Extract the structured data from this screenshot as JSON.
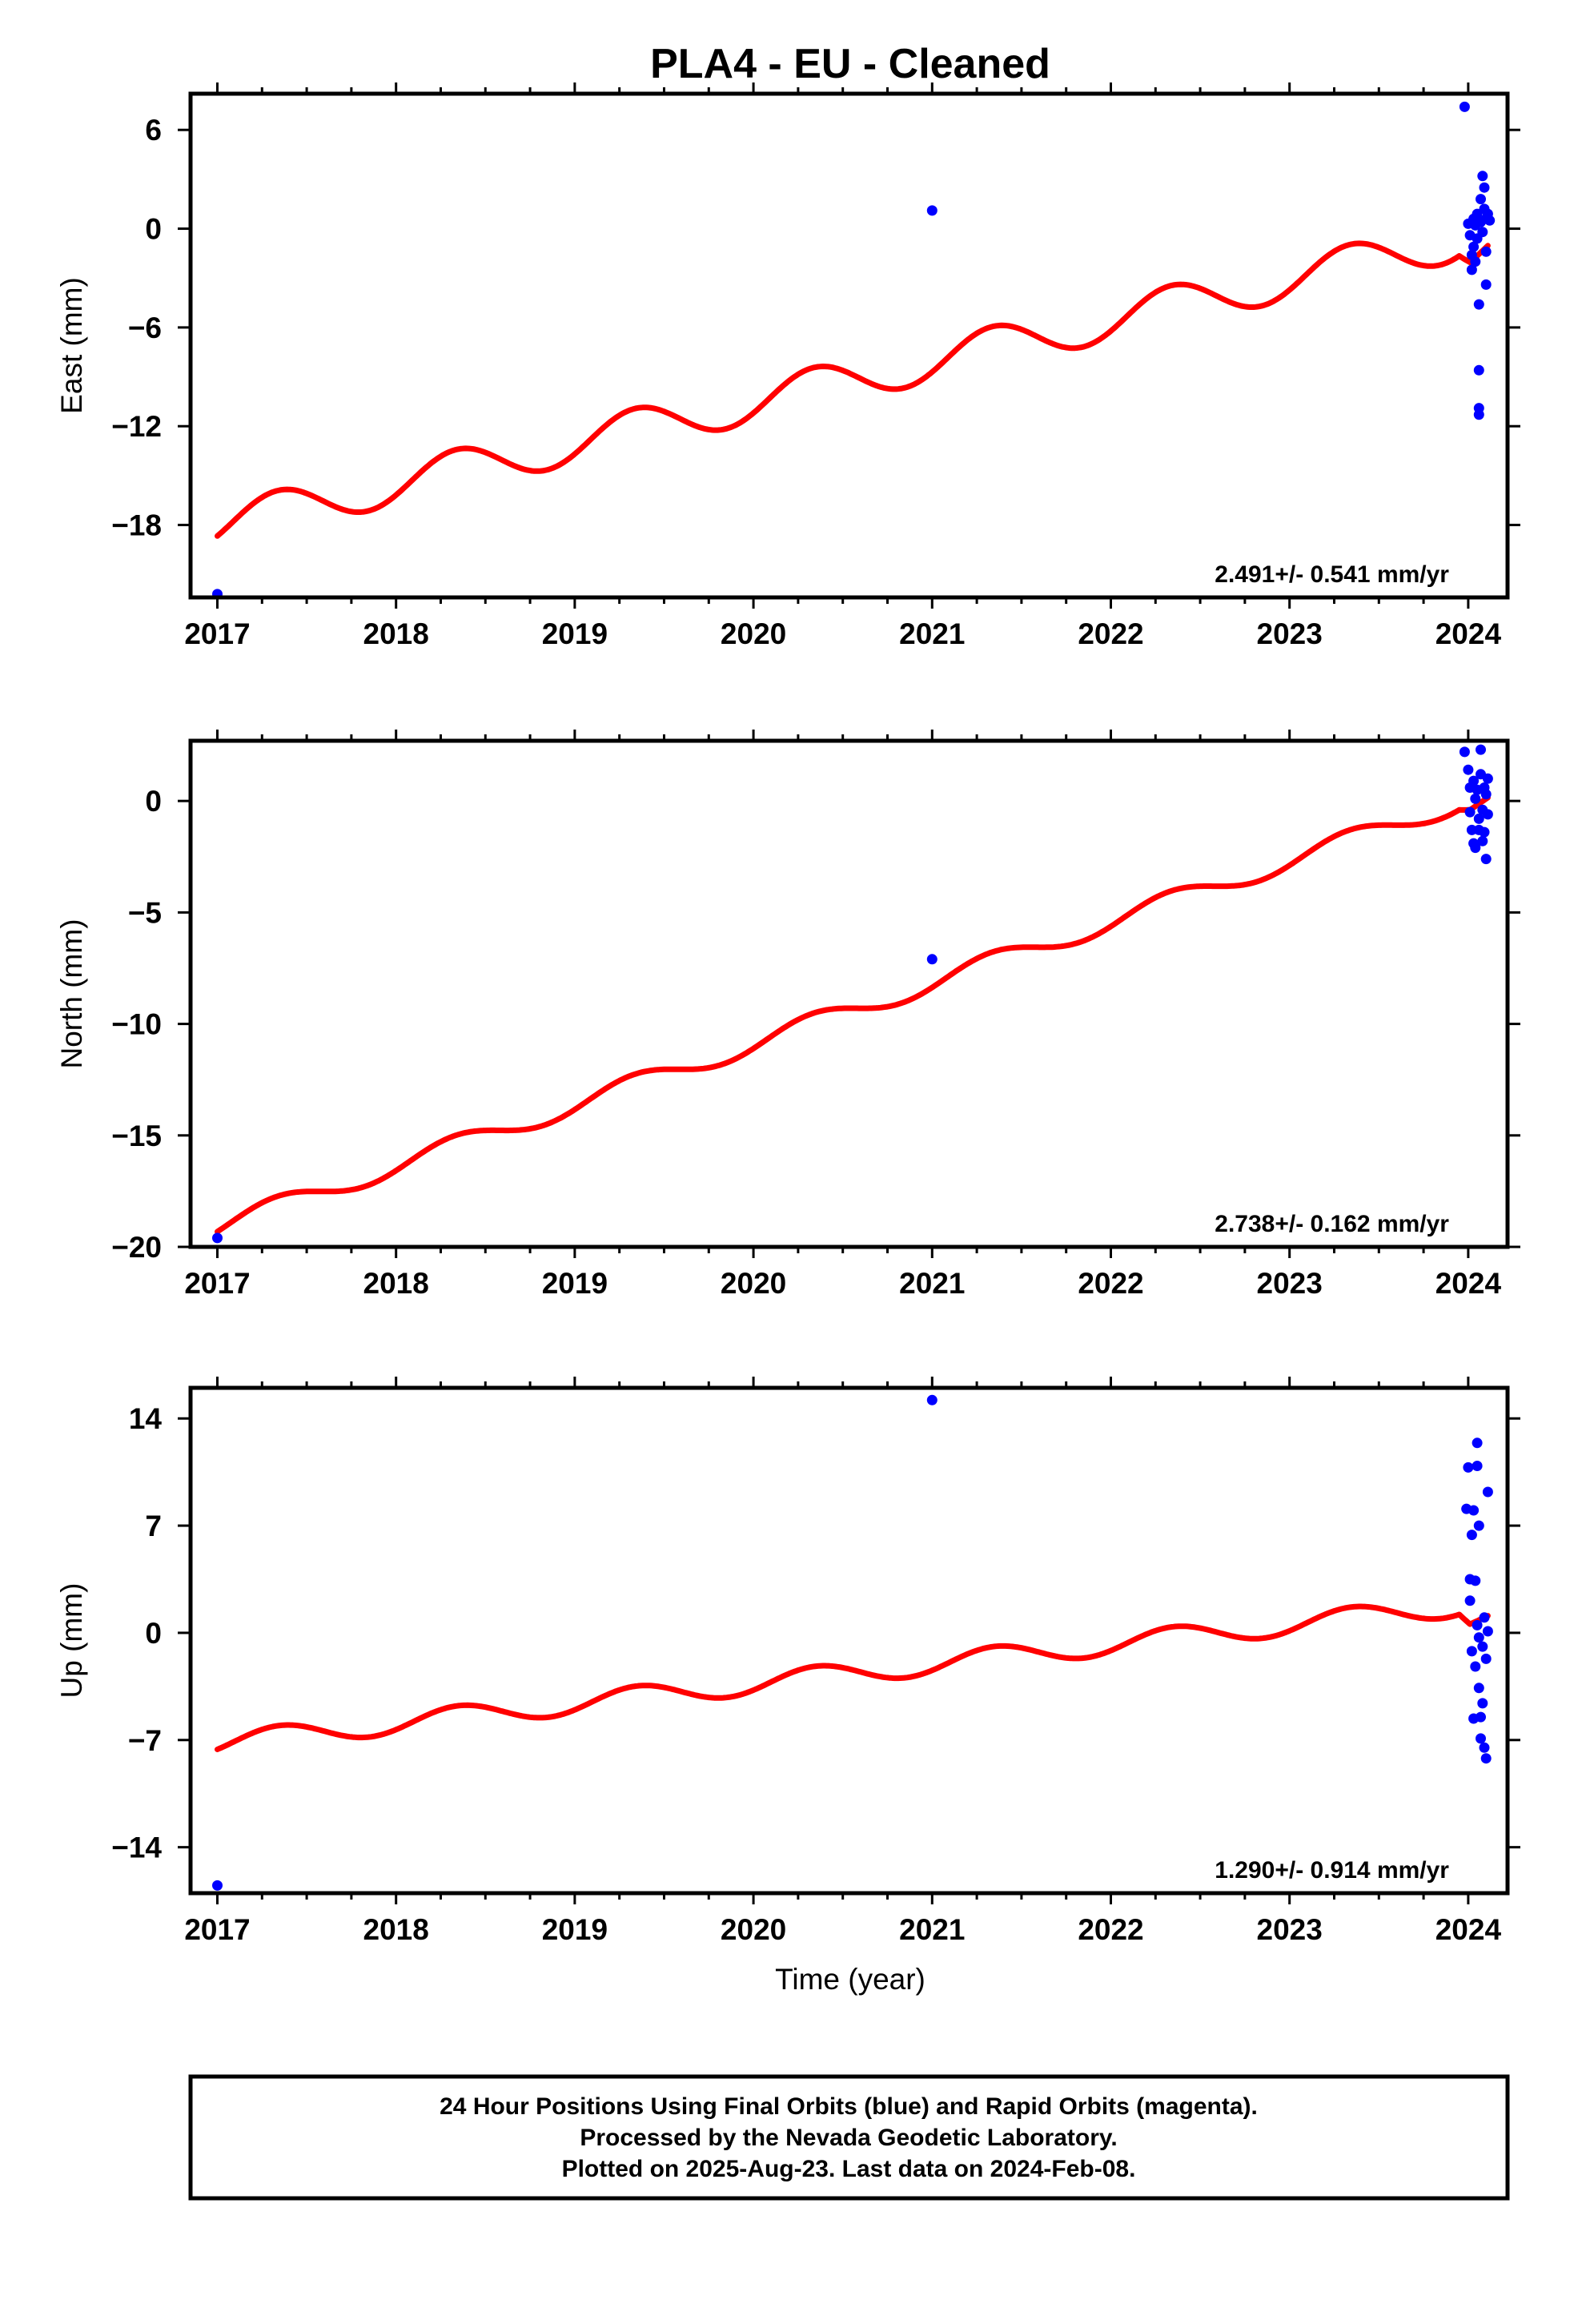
{
  "title": "PLA4  - EU - Cleaned",
  "x_axis_title": "Time (year)",
  "footer": {
    "line1": "24 Hour Positions Using Final Orbits (blue) and Rapid Orbits (magenta).",
    "line2": "Processed by the Nevada Geodetic Laboratory.",
    "line3": "Plotted on 2025-Aug-23. Last data on 2024-Feb-08."
  },
  "colors": {
    "data_points": "#0000ff",
    "model_fit": "#ff0000",
    "frame": "#000000"
  },
  "chart_data": [
    {
      "type": "scatter",
      "component": "East",
      "ylabel": "East (mm)",
      "xlim": [
        2016.85,
        2024.22
      ],
      "ylim": [
        -22.4,
        8.2
      ],
      "x_ticks": [
        2017,
        2018,
        2019,
        2020,
        2021,
        2022,
        2023,
        2024
      ],
      "y_ticks": [
        6,
        0,
        -6,
        -12,
        -18
      ],
      "y_tick_labels": [
        "6",
        "0",
        "−6",
        "−12",
        "−18"
      ],
      "grid": false,
      "rate_label": "2.491+/- 0.541 mm/yr",
      "model": {
        "rate": 2.491,
        "offset_at_2017": -18.0,
        "amplitude": 1.25,
        "phase_year": 0.09,
        "end_step": -0.9,
        "end_step_year": 2023.95
      },
      "points": [
        [
          2017.0,
          -22.2
        ],
        [
          2021.0,
          1.1
        ],
        [
          2023.98,
          7.4
        ],
        [
          2024.0,
          0.3
        ],
        [
          2024.01,
          -0.4
        ],
        [
          2024.02,
          -1.6
        ],
        [
          2024.02,
          -2.5
        ],
        [
          2024.03,
          0.6
        ],
        [
          2024.03,
          -1.1
        ],
        [
          2024.04,
          0.2
        ],
        [
          2024.04,
          -2.0
        ],
        [
          2024.05,
          0.9
        ],
        [
          2024.05,
          -0.6
        ],
        [
          2024.06,
          -4.6
        ],
        [
          2024.06,
          -8.6
        ],
        [
          2024.06,
          -10.9
        ],
        [
          2024.06,
          -11.3
        ],
        [
          2024.07,
          0.4
        ],
        [
          2024.07,
          1.8
        ],
        [
          2024.08,
          3.2
        ],
        [
          2024.08,
          -0.2
        ],
        [
          2024.09,
          2.5
        ],
        [
          2024.09,
          1.2
        ],
        [
          2024.1,
          0.6
        ],
        [
          2024.1,
          -1.4
        ],
        [
          2024.11,
          0.9
        ],
        [
          2024.1,
          -3.4
        ],
        [
          2024.12,
          0.5
        ]
      ]
    },
    {
      "type": "scatter",
      "component": "North",
      "ylabel": "North (mm)",
      "xlim": [
        2016.85,
        2024.22
      ],
      "ylim": [
        -20.0,
        2.7
      ],
      "x_ticks": [
        2017,
        2018,
        2019,
        2020,
        2021,
        2022,
        2023,
        2024
      ],
      "y_ticks": [
        0,
        -5,
        -10,
        -15,
        -20
      ],
      "y_tick_labels": [
        "0",
        "−5",
        "−10",
        "−15",
        "−20"
      ],
      "grid": false,
      "rate_label": "2.738+/- 0.162 mm/yr",
      "model": {
        "rate": 2.738,
        "offset_at_2017": -19.1,
        "amplitude": 0.45,
        "phase_year": 0.08,
        "end_step": -0.3,
        "end_step_year": 2023.95
      },
      "points": [
        [
          2017.0,
          -19.6
        ],
        [
          2021.0,
          -7.1
        ],
        [
          2023.98,
          2.2
        ],
        [
          2024.0,
          1.4
        ],
        [
          2024.01,
          0.6
        ],
        [
          2024.01,
          -0.5
        ],
        [
          2024.02,
          -1.3
        ],
        [
          2024.03,
          0.9
        ],
        [
          2024.03,
          -1.9
        ],
        [
          2024.04,
          0.1
        ],
        [
          2024.04,
          -2.1
        ],
        [
          2024.05,
          0.5
        ],
        [
          2024.06,
          -0.8
        ],
        [
          2024.06,
          -1.3
        ],
        [
          2024.07,
          2.3
        ],
        [
          2024.07,
          1.2
        ],
        [
          2024.08,
          -0.4
        ],
        [
          2024.08,
          -1.8
        ],
        [
          2024.09,
          0.6
        ],
        [
          2024.09,
          -1.4
        ],
        [
          2024.1,
          0.3
        ],
        [
          2024.1,
          -2.6
        ],
        [
          2024.11,
          -0.6
        ],
        [
          2024.11,
          1.0
        ]
      ]
    },
    {
      "type": "scatter",
      "component": "Up",
      "ylabel": "Up (mm)",
      "xlim": [
        2016.85,
        2024.22
      ],
      "ylim": [
        -17.0,
        16.0
      ],
      "x_ticks": [
        2017,
        2018,
        2019,
        2020,
        2021,
        2022,
        2023,
        2024
      ],
      "y_ticks": [
        14,
        7,
        0,
        -7,
        -14
      ],
      "y_tick_labels": [
        "14",
        "7",
        "0",
        "−7",
        "−14"
      ],
      "grid": false,
      "rate_label": "1.290+/- 0.914 mm/yr",
      "model": {
        "rate": 1.29,
        "offset_at_2017": -7.2,
        "amplitude": 0.7,
        "phase_year": 0.1,
        "end_step": -0.9,
        "end_step_year": 2023.95
      },
      "points": [
        [
          2017.0,
          -16.5
        ],
        [
          2021.0,
          15.2
        ],
        [
          2023.99,
          8.1
        ],
        [
          2024.0,
          10.8
        ],
        [
          2024.01,
          3.5
        ],
        [
          2024.01,
          2.1
        ],
        [
          2024.02,
          6.4
        ],
        [
          2024.02,
          -1.2
        ],
        [
          2024.03,
          8.0
        ],
        [
          2024.03,
          -5.6
        ],
        [
          2024.04,
          3.4
        ],
        [
          2024.04,
          -2.2
        ],
        [
          2024.05,
          12.4
        ],
        [
          2024.05,
          10.9
        ],
        [
          2024.05,
          0.5
        ],
        [
          2024.06,
          7.0
        ],
        [
          2024.06,
          -0.3
        ],
        [
          2024.06,
          -3.6
        ],
        [
          2024.07,
          -5.5
        ],
        [
          2024.07,
          -6.9
        ],
        [
          2024.08,
          -4.6
        ],
        [
          2024.08,
          -0.9
        ],
        [
          2024.09,
          1.0
        ],
        [
          2024.09,
          -7.5
        ],
        [
          2024.1,
          -1.7
        ],
        [
          2024.1,
          -8.2
        ],
        [
          2024.11,
          9.2
        ],
        [
          2024.11,
          0.1
        ]
      ]
    }
  ]
}
